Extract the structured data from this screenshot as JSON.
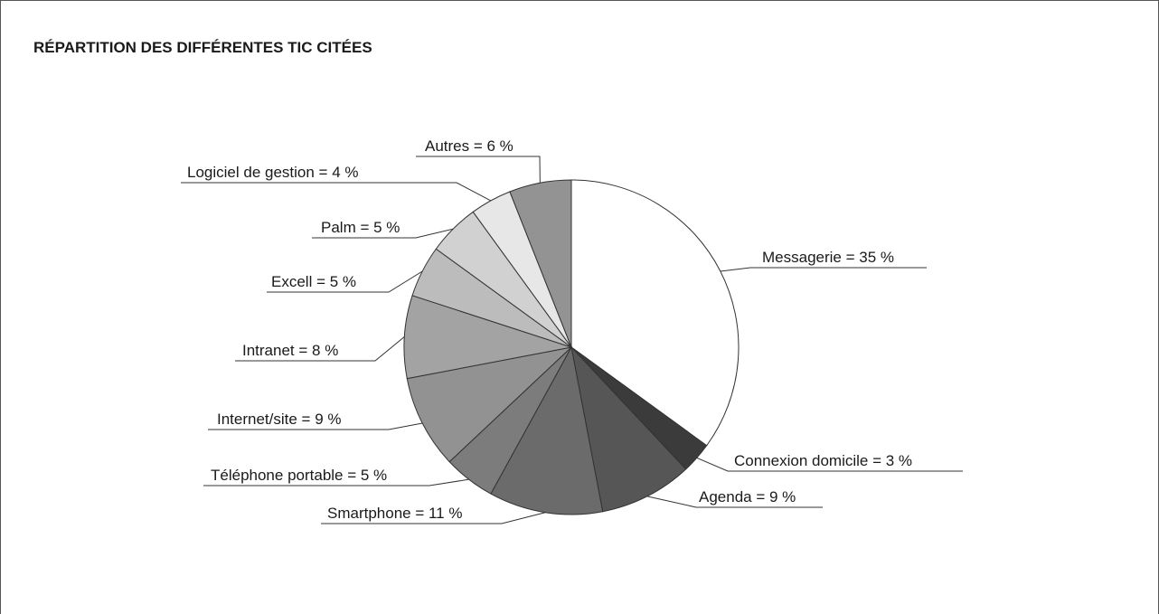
{
  "chart_data": {
    "type": "pie",
    "title": "RÉPARTITION DES DIFFÉRENTES TIC CITÉES",
    "values": [
      35,
      3,
      9,
      11,
      5,
      9,
      8,
      5,
      5,
      4,
      6
    ],
    "value_labels": [
      "Messagerie = 35 %",
      "Connexion domicile = 3 %",
      "Agenda = 9 %",
      "Smartphone = 11 %",
      "Téléphone portable = 5 %",
      "Internet/site = 9 %",
      "Intranet = 8 %",
      "Excell = 5 %",
      "Palm = 5 %",
      "Logiciel de gestion = 4 %",
      "Autres = 6 %"
    ],
    "colors": [
      "#ffffff",
      "#3b3b3b",
      "#565656",
      "#6b6b6b",
      "#7c7c7c",
      "#929292",
      "#a3a3a3",
      "#bcbcbc",
      "#d1d1d1",
      "#e7e7e7",
      "#939393"
    ]
  }
}
